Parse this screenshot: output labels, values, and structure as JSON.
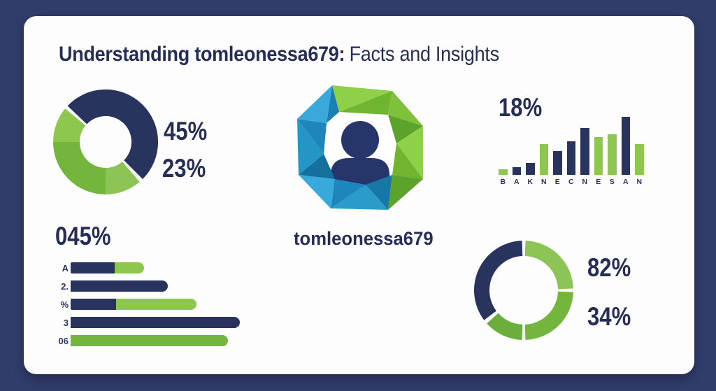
{
  "header": {
    "title_bold": "Understanding tomleonessa679:",
    "title_regular": "Facts and Insights"
  },
  "logo": {
    "caption": "tomleonessa679",
    "icon": "low-poly-ring-person-logo"
  },
  "colors": {
    "frame_navy": "#303c6a",
    "card_bg": "#fdfdfe",
    "text_navy": "#272e55",
    "navy": "#28335e",
    "green_light": "#8dc74d",
    "green_bright": "#8cc455",
    "green_medium": "#74b53e",
    "green_deep": "#6cae3c",
    "logo_blue": "#1d86bd",
    "logo_green": "#7fc13b"
  },
  "chart_data": [
    {
      "id": "donut-top-left",
      "type": "pie",
      "labels": [
        "45%",
        "23%"
      ],
      "legend_position": "right",
      "ring": {
        "outer_r": 75,
        "inner_r": 37
      },
      "segments": [
        {
          "start": -46.5,
          "end": 135,
          "color": "navy",
          "note": "top-right navy arc"
        },
        {
          "start": 139.5,
          "end": 180,
          "color": "green_bright",
          "note": "bottom-right green"
        },
        {
          "start": 180,
          "end": 270,
          "color": "green_medium",
          "note": "bottom-left green"
        },
        {
          "start": 270,
          "end": 309.5,
          "color": "green_light",
          "note": "upper-left green"
        }
      ]
    },
    {
      "id": "bar-top-right",
      "type": "bar",
      "label": "18%",
      "categories": [
        "B",
        "A",
        "K",
        "N",
        "E",
        "C",
        "N",
        "E",
        "S",
        "A",
        "N"
      ],
      "values": [
        10,
        13,
        20,
        53,
        41,
        58,
        81,
        65,
        70,
        100,
        53
      ],
      "value_scale": "relative 0-100, tallest bar = 100",
      "bar_colors": [
        "green_light",
        "navy",
        "navy",
        "green_light",
        "navy",
        "navy",
        "navy",
        "green_light",
        "green_light",
        "navy",
        "green_light"
      ],
      "grid": false,
      "axis": "none"
    },
    {
      "id": "hbar-bottom-left",
      "type": "bar",
      "label": "045%",
      "orientation": "horizontal",
      "categories": [
        "A",
        "2.",
        "%",
        "3",
        "06"
      ],
      "rows": [
        {
          "label": "A",
          "segments": [
            {
              "color": "navy",
              "len": 63
            },
            {
              "color": "green_light",
              "len": 42
            }
          ]
        },
        {
          "label": "2.",
          "segments": [
            {
              "color": "navy",
              "len": 139
            }
          ]
        },
        {
          "label": "%",
          "segments": [
            {
              "color": "navy",
              "len": 65
            },
            {
              "color": "green_light",
              "len": 115
            }
          ]
        },
        {
          "label": "3",
          "segments": [
            {
              "color": "navy",
              "len": 242
            }
          ]
        },
        {
          "label": "06",
          "segments": [
            {
              "color": "green_medium",
              "len": 225
            }
          ]
        }
      ],
      "len_scale": "pixels",
      "grid": false,
      "axis": "none"
    },
    {
      "id": "donut-bottom-right",
      "type": "pie",
      "labels": [
        "82%",
        "34%"
      ],
      "legend_position": "right",
      "ring": {
        "outer_r": 71,
        "inner_r": 49
      },
      "segments": [
        {
          "start": 2,
          "end": 88,
          "color": "green_bright",
          "note": "top-right"
        },
        {
          "start": 92,
          "end": 178,
          "color": "green_medium",
          "note": "bottom-right"
        },
        {
          "start": 182,
          "end": 228,
          "color": "green_deep",
          "note": "bottom-left wedge"
        },
        {
          "start": 233,
          "end": 358,
          "color": "navy",
          "note": "left navy arc"
        }
      ]
    }
  ]
}
